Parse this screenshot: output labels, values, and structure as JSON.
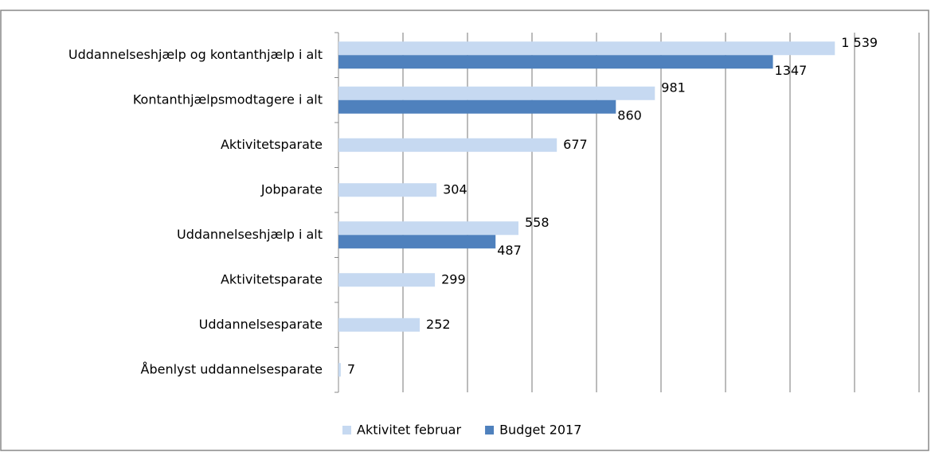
{
  "chart_data": {
    "type": "hbar",
    "categories": [
      "Uddannelseshjælp og kontanthjælp i alt",
      "Kontanthjælpsmodtagere i alt",
      "Aktivitetsparate",
      "Jobparate",
      "Uddannelseshjælp i alt",
      "Aktivitetsparate",
      "Uddannelsesparate",
      "Åbenlyst uddannelsesparate"
    ],
    "series": [
      {
        "name": "Aktivitet februar",
        "color": "#c6d9f1",
        "values": [
          1539,
          981,
          677,
          304,
          558,
          299,
          252,
          7
        ],
        "value_labels": [
          "1 539",
          "981",
          "677",
          "304",
          "558",
          "299",
          "252",
          "7"
        ]
      },
      {
        "name": "Budget 2017",
        "color": "#4f81bd",
        "values": [
          1347,
          860,
          null,
          null,
          487,
          null,
          null,
          null
        ]
      }
    ],
    "xlim": [
      0,
      1800
    ],
    "xticks": [
      0,
      200,
      400,
      600,
      800,
      1000,
      1200,
      1400,
      1600,
      1800
    ],
    "grid": true,
    "legend": "bottom"
  }
}
